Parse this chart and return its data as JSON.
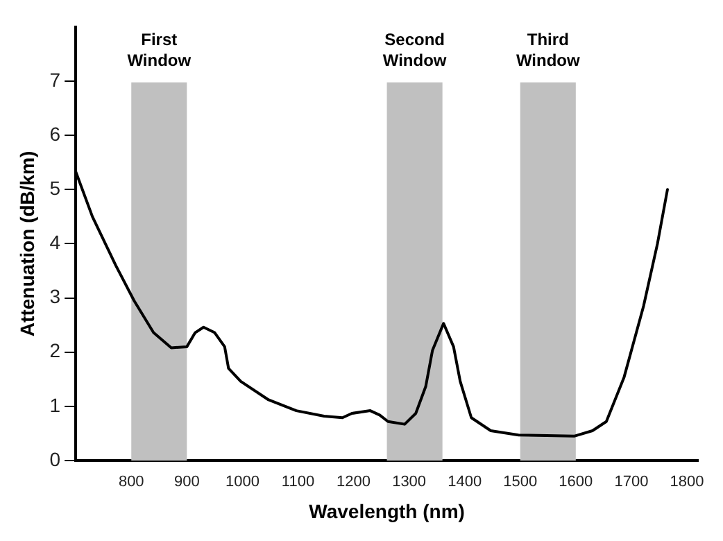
{
  "chart_data": {
    "type": "line",
    "xlabel": "Wavelength (nm)",
    "ylabel": "Attenuation (dB/km)",
    "series": [
      {
        "color": "#000000",
        "x": [
          700,
          730,
          772,
          805,
          840,
          872,
          900,
          915,
          930,
          950,
          968,
          975,
          997,
          1047,
          1097,
          1147,
          1180,
          1197,
          1230,
          1247,
          1262,
          1292,
          1312,
          1330,
          1342,
          1362,
          1380,
          1392,
          1412,
          1447,
          1497,
          1597,
          1630,
          1655,
          1687,
          1722,
          1747,
          1765
        ],
        "values": [
          5.33,
          4.5,
          3.6,
          2.95,
          2.36,
          2.08,
          2.1,
          2.36,
          2.46,
          2.36,
          2.1,
          1.7,
          1.46,
          1.12,
          0.92,
          0.82,
          0.79,
          0.87,
          0.92,
          0.84,
          0.72,
          0.67,
          0.87,
          1.37,
          2.03,
          2.53,
          2.1,
          1.46,
          0.79,
          0.55,
          0.47,
          0.45,
          0.55,
          0.72,
          1.54,
          2.85,
          4.0,
          5.0
        ]
      }
    ],
    "xlim": [
      700,
      1820
    ],
    "xticks": [
      800,
      900,
      1000,
      1100,
      1200,
      1300,
      1400,
      1500,
      1600,
      1700,
      1800
    ],
    "ylim": [
      0,
      8
    ],
    "yticks": [
      0,
      1,
      2,
      3,
      4,
      5,
      6,
      7
    ],
    "bands": [
      {
        "axis": "x",
        "from": 800,
        "to": 900,
        "label": "First Window",
        "color": "#c0c0c0"
      },
      {
        "axis": "x",
        "from": 1260,
        "to": 1360,
        "label": "Second Window",
        "color": "#c0c0c0"
      },
      {
        "axis": "x",
        "from": 1500,
        "to": 1600,
        "label": "Third Window",
        "color": "#c0c0c0"
      }
    ],
    "grid": false,
    "legend": false,
    "marker": "none",
    "line_style": "solid"
  }
}
